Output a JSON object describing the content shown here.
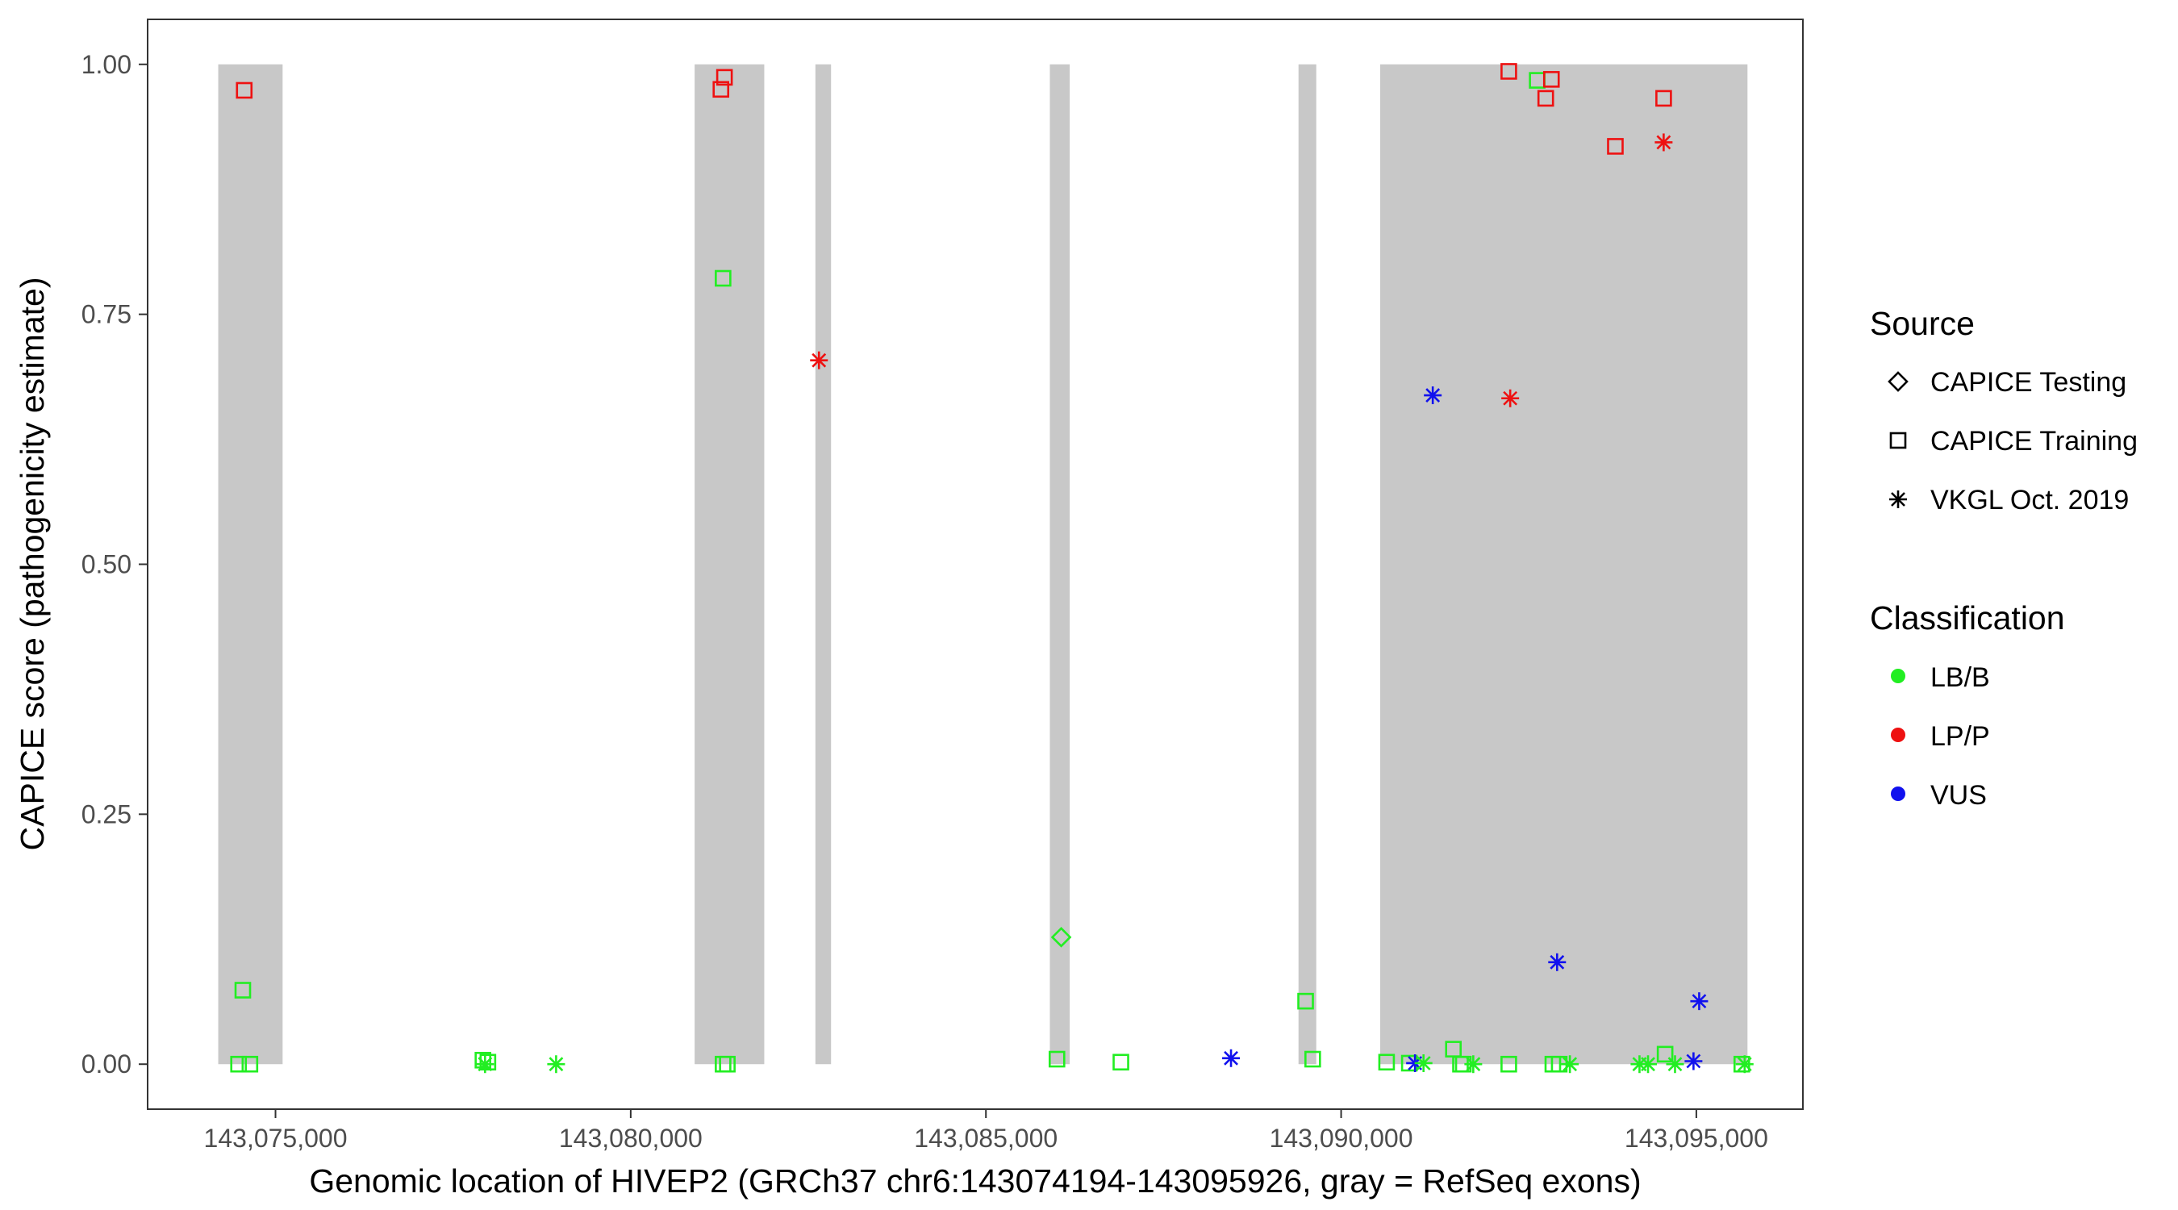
{
  "chart_data": {
    "type": "scatter",
    "xlabel": "Genomic location of HIVEP2 (GRCh37 chr6:143074194-143095926, gray = RefSeq exons)",
    "ylabel": "CAPICE score (pathogenicity estimate)",
    "xlim": [
      143073200,
      143096500
    ],
    "ylim": [
      -0.045,
      1.045
    ],
    "x_ticks": [
      143075000,
      143080000,
      143085000,
      143090000,
      143095000
    ],
    "x_tick_labels": [
      "143,075,000",
      "143,080,000",
      "143,085,000",
      "143,090,000",
      "143,095,000"
    ],
    "y_ticks": [
      0,
      0.25,
      0.5,
      0.75,
      1
    ],
    "y_tick_labels": [
      "0.00",
      "0.25",
      "0.50",
      "0.75",
      "1.00"
    ],
    "grid": false,
    "exons": [
      [
        143074194,
        143075100
      ],
      [
        143080900,
        143081880
      ],
      [
        143082600,
        143082820
      ],
      [
        143085900,
        143086180
      ],
      [
        143089400,
        143089650
      ],
      [
        143090550,
        143095720
      ]
    ],
    "colors": {
      "LB/B": "#22ee22",
      "LP/P": "#ee1111",
      "VUS": "#1111ee",
      "exon": "#c8c8c8",
      "axis": "#333333"
    },
    "legend": {
      "placement": "right",
      "source_title": "Source",
      "source_items": [
        {
          "label": "CAPICE Testing",
          "shape": "diamond"
        },
        {
          "label": "CAPICE Training",
          "shape": "square"
        },
        {
          "label": "VKGL Oct. 2019",
          "shape": "asterisk"
        }
      ],
      "class_title": "Classification",
      "class_items": [
        {
          "label": "LB/B",
          "key": "LB/B"
        },
        {
          "label": "LP/P",
          "key": "LP/P"
        },
        {
          "label": "VUS",
          "key": "VUS"
        }
      ]
    },
    "points": [
      {
        "x": 143074560,
        "y": 0.974,
        "source": "CAPICE Training",
        "cls": "LP/P"
      },
      {
        "x": 143074540,
        "y": 0.074,
        "source": "CAPICE Training",
        "cls": "LB/B"
      },
      {
        "x": 143074480,
        "y": 0.0,
        "source": "CAPICE Training",
        "cls": "LB/B"
      },
      {
        "x": 143074640,
        "y": 0.0,
        "source": "CAPICE Training",
        "cls": "LB/B"
      },
      {
        "x": 143077920,
        "y": 0.004,
        "source": "CAPICE Training",
        "cls": "LB/B"
      },
      {
        "x": 143077990,
        "y": 0.002,
        "source": "CAPICE Training",
        "cls": "LB/B"
      },
      {
        "x": 143077950,
        "y": 0.0,
        "source": "VKGL Oct. 2019",
        "cls": "LB/B"
      },
      {
        "x": 143078950,
        "y": 0.0,
        "source": "VKGL Oct. 2019",
        "cls": "LB/B"
      },
      {
        "x": 143081270,
        "y": 0.975,
        "source": "CAPICE Training",
        "cls": "LP/P"
      },
      {
        "x": 143081320,
        "y": 0.987,
        "source": "CAPICE Training",
        "cls": "LP/P"
      },
      {
        "x": 143081300,
        "y": 0.786,
        "source": "CAPICE Training",
        "cls": "LB/B"
      },
      {
        "x": 143081300,
        "y": 0.0,
        "source": "CAPICE Training",
        "cls": "LB/B"
      },
      {
        "x": 143081360,
        "y": 0.0,
        "source": "CAPICE Training",
        "cls": "LB/B"
      },
      {
        "x": 143082650,
        "y": 0.704,
        "source": "VKGL Oct. 2019",
        "cls": "LP/P"
      },
      {
        "x": 143086060,
        "y": 0.127,
        "source": "CAPICE Testing",
        "cls": "LB/B"
      },
      {
        "x": 143086000,
        "y": 0.005,
        "source": "CAPICE Training",
        "cls": "LB/B"
      },
      {
        "x": 143086900,
        "y": 0.002,
        "source": "CAPICE Training",
        "cls": "LB/B"
      },
      {
        "x": 143088450,
        "y": 0.006,
        "source": "VKGL Oct. 2019",
        "cls": "VUS"
      },
      {
        "x": 143089500,
        "y": 0.063,
        "source": "CAPICE Training",
        "cls": "LB/B"
      },
      {
        "x": 143089600,
        "y": 0.005,
        "source": "CAPICE Training",
        "cls": "LB/B"
      },
      {
        "x": 143090640,
        "y": 0.002,
        "source": "CAPICE Training",
        "cls": "LB/B"
      },
      {
        "x": 143090960,
        "y": 0.001,
        "source": "CAPICE Training",
        "cls": "LB/B"
      },
      {
        "x": 143091040,
        "y": 0.001,
        "source": "VKGL Oct. 2019",
        "cls": "VUS"
      },
      {
        "x": 143091160,
        "y": 0.001,
        "source": "VKGL Oct. 2019",
        "cls": "LB/B"
      },
      {
        "x": 143091290,
        "y": 0.669,
        "source": "VKGL Oct. 2019",
        "cls": "VUS"
      },
      {
        "x": 143091580,
        "y": 0.015,
        "source": "CAPICE Training",
        "cls": "LB/B"
      },
      {
        "x": 143091680,
        "y": 0.0,
        "source": "CAPICE Training",
        "cls": "LB/B"
      },
      {
        "x": 143091720,
        "y": 0.0,
        "source": "CAPICE Training",
        "cls": "LB/B"
      },
      {
        "x": 143091860,
        "y": 0.0,
        "source": "VKGL Oct. 2019",
        "cls": "LB/B"
      },
      {
        "x": 143092360,
        "y": 0.993,
        "source": "CAPICE Training",
        "cls": "LP/P"
      },
      {
        "x": 143092380,
        "y": 0.666,
        "source": "VKGL Oct. 2019",
        "cls": "LP/P"
      },
      {
        "x": 143092360,
        "y": 0.0,
        "source": "CAPICE Training",
        "cls": "LB/B"
      },
      {
        "x": 143092760,
        "y": 0.984,
        "source": "CAPICE Training",
        "cls": "LB/B"
      },
      {
        "x": 143092880,
        "y": 0.966,
        "source": "CAPICE Training",
        "cls": "LP/P"
      },
      {
        "x": 143092960,
        "y": 0.985,
        "source": "CAPICE Training",
        "cls": "LP/P"
      },
      {
        "x": 143092980,
        "y": 0.0,
        "source": "CAPICE Training",
        "cls": "LB/B"
      },
      {
        "x": 143093040,
        "y": 0.102,
        "source": "VKGL Oct. 2019",
        "cls": "VUS"
      },
      {
        "x": 143093070,
        "y": 0.0,
        "source": "CAPICE Training",
        "cls": "LB/B"
      },
      {
        "x": 143093220,
        "y": 0.0,
        "source": "VKGL Oct. 2019",
        "cls": "LB/B"
      },
      {
        "x": 143093860,
        "y": 0.918,
        "source": "CAPICE Training",
        "cls": "LP/P"
      },
      {
        "x": 143094200,
        "y": 0.0,
        "source": "VKGL Oct. 2019",
        "cls": "LB/B"
      },
      {
        "x": 143094320,
        "y": 0.0,
        "source": "VKGL Oct. 2019",
        "cls": "LB/B"
      },
      {
        "x": 143094540,
        "y": 0.966,
        "source": "CAPICE Training",
        "cls": "LP/P"
      },
      {
        "x": 143094540,
        "y": 0.922,
        "source": "VKGL Oct. 2019",
        "cls": "LP/P"
      },
      {
        "x": 143094560,
        "y": 0.01,
        "source": "CAPICE Training",
        "cls": "LB/B"
      },
      {
        "x": 143094700,
        "y": 0.0,
        "source": "VKGL Oct. 2019",
        "cls": "LB/B"
      },
      {
        "x": 143094960,
        "y": 0.003,
        "source": "VKGL Oct. 2019",
        "cls": "VUS"
      },
      {
        "x": 143095040,
        "y": 0.063,
        "source": "VKGL Oct. 2019",
        "cls": "VUS"
      },
      {
        "x": 143095640,
        "y": 0.0,
        "source": "CAPICE Training",
        "cls": "LB/B"
      },
      {
        "x": 143095680,
        "y": 0.0,
        "source": "VKGL Oct. 2019",
        "cls": "LB/B"
      }
    ]
  }
}
